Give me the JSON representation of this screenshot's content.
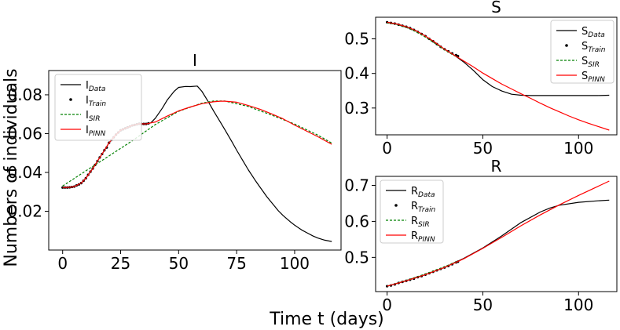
{
  "figure": {
    "xlabel": "Time t (days)",
    "ylabel": "Numbers of individuals"
  },
  "chart_data": [
    {
      "type": "line",
      "title": "I",
      "xlim": [
        -6,
        120
      ],
      "ylim": [
        0.0,
        0.0925
      ],
      "xticks": [
        0,
        25,
        50,
        75,
        100
      ],
      "yticks": [
        0.02,
        0.04,
        0.06,
        0.08
      ],
      "ytick_labels": [
        "0.02",
        "0.04",
        "0.06",
        "0.08"
      ],
      "legend_position": "upper-left",
      "series": [
        {
          "name": "I",
          "sub": "Data",
          "style": "line",
          "color": "#000000",
          "x": [
            0,
            3,
            5,
            8,
            10,
            13,
            15,
            18,
            20,
            23,
            25,
            28,
            30,
            33,
            36,
            38,
            40,
            43,
            45,
            48,
            50,
            53,
            55,
            58,
            60,
            63,
            65,
            68,
            70,
            73,
            75,
            78,
            80,
            83,
            85,
            88,
            90,
            93,
            95,
            98,
            100,
            103,
            105,
            108,
            110,
            113,
            116
          ],
          "y": [
            0.0322,
            0.0323,
            0.0327,
            0.0345,
            0.037,
            0.042,
            0.0458,
            0.0514,
            0.0553,
            0.0595,
            0.0617,
            0.0632,
            0.0642,
            0.0651,
            0.065,
            0.0655,
            0.068,
            0.0732,
            0.0772,
            0.0817,
            0.0838,
            0.0843,
            0.0842,
            0.0845,
            0.0818,
            0.076,
            0.0718,
            0.0659,
            0.0619,
            0.0558,
            0.0515,
            0.0454,
            0.0414,
            0.0359,
            0.0325,
            0.0275,
            0.0246,
            0.0202,
            0.0178,
            0.0147,
            0.0128,
            0.0104,
            0.0091,
            0.0072,
            0.0062,
            0.0051,
            0.0044
          ]
        },
        {
          "name": "I",
          "sub": "Train",
          "style": "points",
          "color": "#000000",
          "x": [
            0,
            1,
            2,
            3,
            4,
            5,
            6,
            7,
            8,
            9,
            10,
            11,
            12,
            13,
            14,
            15,
            16,
            17,
            18,
            19,
            20,
            21,
            22,
            23,
            24,
            25,
            26,
            27,
            28,
            29,
            30,
            31,
            32,
            33,
            34,
            35,
            36,
            37
          ],
          "y": [
            0.0322,
            0.0322,
            0.0322,
            0.0323,
            0.0325,
            0.0327,
            0.0333,
            0.0338,
            0.0345,
            0.0357,
            0.037,
            0.0388,
            0.0404,
            0.042,
            0.0439,
            0.0458,
            0.0477,
            0.0495,
            0.0514,
            0.0528,
            0.0553,
            0.0567,
            0.0581,
            0.0595,
            0.0606,
            0.0617,
            0.0622,
            0.0627,
            0.0632,
            0.0637,
            0.0642,
            0.0645,
            0.0648,
            0.0651,
            0.065,
            0.065,
            0.065,
            0.0653
          ]
        },
        {
          "name": "I",
          "sub": "SIR",
          "style": "dashed",
          "color": "#008000",
          "x": [
            0,
            10,
            20,
            30,
            40,
            50,
            60,
            65,
            70,
            80,
            90,
            100,
            110,
            116
          ],
          "y": [
            0.033,
            0.0408,
            0.0485,
            0.0563,
            0.0647,
            0.0715,
            0.0757,
            0.0768,
            0.0768,
            0.074,
            0.0696,
            0.0649,
            0.0592,
            0.0551
          ]
        },
        {
          "name": "I",
          "sub": "PINN",
          "style": "line",
          "color": "#ff0000",
          "x": [
            0,
            3,
            5,
            8,
            10,
            13,
            15,
            18,
            20,
            23,
            25,
            28,
            30,
            33,
            36,
            38,
            40,
            45,
            50,
            55,
            60,
            65,
            68,
            70,
            75,
            80,
            85,
            90,
            95,
            100,
            105,
            110,
            116
          ],
          "y": [
            0.0322,
            0.0323,
            0.0327,
            0.0345,
            0.037,
            0.042,
            0.0458,
            0.0514,
            0.0553,
            0.0595,
            0.0617,
            0.0632,
            0.0642,
            0.0651,
            0.065,
            0.0655,
            0.066,
            0.069,
            0.0717,
            0.0737,
            0.0754,
            0.0764,
            0.0767,
            0.0767,
            0.0762,
            0.0745,
            0.0726,
            0.0702,
            0.0676,
            0.0644,
            0.0614,
            0.0584,
            0.0545
          ]
        }
      ]
    },
    {
      "type": "line",
      "title": "S",
      "xlim": [
        -6,
        120
      ],
      "ylim": [
        0.2225,
        0.5625
      ],
      "xticks": [
        0,
        50,
        100
      ],
      "yticks": [
        0.3,
        0.4,
        0.5
      ],
      "ytick_labels": [
        "0.3",
        "0.4",
        "0.5"
      ],
      "legend_position": "upper-right",
      "series": [
        {
          "name": "S",
          "sub": "Data",
          "style": "line",
          "color": "#000000",
          "x": [
            0,
            5,
            10,
            15,
            20,
            25,
            30,
            35,
            40,
            45,
            50,
            55,
            60,
            65,
            70,
            75,
            80,
            90,
            100,
            110,
            116
          ],
          "y": [
            0.548,
            0.543,
            0.535,
            0.524,
            0.508,
            0.49,
            0.47,
            0.453,
            0.433,
            0.409,
            0.382,
            0.362,
            0.349,
            0.34,
            0.337,
            0.336,
            0.336,
            0.336,
            0.336,
            0.336,
            0.337
          ]
        },
        {
          "name": "S",
          "sub": "Train",
          "style": "points",
          "color": "#000000",
          "x": [
            0,
            2,
            4,
            6,
            8,
            10,
            12,
            14,
            16,
            18,
            20,
            22,
            24,
            26,
            28,
            30,
            32,
            34,
            36,
            37
          ],
          "y": [
            0.548,
            0.546,
            0.544,
            0.541,
            0.538,
            0.535,
            0.531,
            0.526,
            0.52,
            0.514,
            0.508,
            0.5,
            0.493,
            0.485,
            0.477,
            0.47,
            0.464,
            0.458,
            0.453,
            0.45
          ]
        },
        {
          "name": "S",
          "sub": "SIR",
          "style": "dashed",
          "color": "#008000",
          "x": [
            0,
            5,
            10,
            15,
            20,
            25,
            30,
            35,
            37
          ],
          "y": [
            0.546,
            0.542,
            0.533,
            0.521,
            0.505,
            0.487,
            0.468,
            0.452,
            0.447
          ]
        },
        {
          "name": "S",
          "sub": "PINN",
          "style": "line",
          "color": "#ff0000",
          "x": [
            0,
            5,
            10,
            15,
            20,
            25,
            30,
            35,
            40,
            45,
            50,
            55,
            60,
            65,
            70,
            75,
            80,
            85,
            90,
            95,
            100,
            105,
            110,
            116
          ],
          "y": [
            0.548,
            0.543,
            0.535,
            0.524,
            0.508,
            0.49,
            0.47,
            0.453,
            0.436,
            0.419,
            0.401,
            0.385,
            0.369,
            0.355,
            0.341,
            0.328,
            0.314,
            0.301,
            0.289,
            0.277,
            0.266,
            0.256,
            0.247,
            0.236
          ]
        }
      ]
    },
    {
      "type": "line",
      "title": "R",
      "xlim": [
        -6,
        120
      ],
      "ylim": [
        0.405,
        0.725
      ],
      "xticks": [
        0,
        50,
        100
      ],
      "yticks": [
        0.5,
        0.6,
        0.7
      ],
      "ytick_labels": [
        "0.5",
        "0.6",
        "0.7"
      ],
      "legend_position": "upper-left",
      "series": [
        {
          "name": "R",
          "sub": "Data",
          "style": "line",
          "color": "#000000",
          "x": [
            0,
            10,
            20,
            30,
            40,
            50,
            60,
            70,
            80,
            85,
            90,
            100,
            110,
            116
          ],
          "y": [
            0.42,
            0.435,
            0.452,
            0.472,
            0.497,
            0.526,
            0.56,
            0.597,
            0.626,
            0.637,
            0.645,
            0.653,
            0.657,
            0.659
          ]
        },
        {
          "name": "R",
          "sub": "Train",
          "style": "points",
          "color": "#000000",
          "x": [
            0,
            2,
            4,
            6,
            8,
            10,
            12,
            14,
            16,
            18,
            20,
            22,
            24,
            26,
            28,
            30,
            32,
            34,
            36,
            37
          ],
          "y": [
            0.42,
            0.422,
            0.425,
            0.429,
            0.432,
            0.435,
            0.438,
            0.441,
            0.445,
            0.448,
            0.452,
            0.456,
            0.46,
            0.464,
            0.468,
            0.472,
            0.476,
            0.481,
            0.486,
            0.488
          ]
        },
        {
          "name": "R",
          "sub": "SIR",
          "style": "dashed",
          "color": "#008000",
          "x": [
            0,
            10,
            20,
            30,
            37
          ],
          "y": [
            0.42,
            0.436,
            0.454,
            0.474,
            0.49
          ]
        },
        {
          "name": "R",
          "sub": "PINN",
          "style": "line",
          "color": "#ff0000",
          "x": [
            0,
            10,
            20,
            30,
            40,
            50,
            60,
            70,
            80,
            90,
            100,
            110,
            116
          ],
          "y": [
            0.42,
            0.435,
            0.452,
            0.472,
            0.496,
            0.525,
            0.556,
            0.588,
            0.618,
            0.646,
            0.672,
            0.697,
            0.712
          ]
        }
      ]
    }
  ]
}
